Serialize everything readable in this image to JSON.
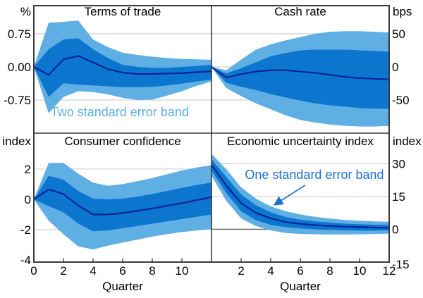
{
  "figure": {
    "x_axis_label": "Quarter",
    "x_max": 12
  },
  "colors": {
    "band_two_se": "#5FAEE4",
    "band_one_se": "#0C76CF",
    "center_line": "#00239E",
    "annotation_blue": "#1B70D4",
    "gridline": "#CCCCCC",
    "zero_line": "#606060",
    "border": "#3A3A3A",
    "text": "#000000",
    "background": "#FFFFFF"
  },
  "chart_data": [
    {
      "type": "area",
      "key": "terms-of-trade",
      "grid": "tl",
      "title": "Terms of trade",
      "unit": "%",
      "side": "left",
      "ylim": [
        -1.5,
        1.387
      ],
      "yticks": [
        {
          "v": 0.75,
          "label": "0.75"
        },
        {
          "v": 0.0,
          "label": "0.00"
        },
        {
          "v": -0.75,
          "label": "-0.75"
        }
      ],
      "x": [
        0,
        1,
        2,
        3,
        4,
        5,
        6,
        7,
        8,
        9,
        10,
        11,
        12
      ],
      "series": {
        "center": [
          0,
          -0.18,
          0.17,
          0.25,
          0.1,
          -0.05,
          -0.13,
          -0.16,
          -0.16,
          -0.15,
          -0.14,
          -0.12,
          -0.1
        ],
        "se1_upper": [
          0,
          0.4,
          0.62,
          0.65,
          0.4,
          0.2,
          0.05,
          0.0,
          -0.02,
          -0.02,
          0.0,
          0.02,
          0.05
        ],
        "se1_lower": [
          0,
          -0.68,
          -0.37,
          -0.4,
          -0.42,
          -0.44,
          -0.46,
          -0.46,
          -0.45,
          -0.42,
          -0.38,
          -0.33,
          -0.29
        ],
        "se2_upper": [
          0,
          1.0,
          1.02,
          1.05,
          0.62,
          0.45,
          0.32,
          0.27,
          0.23,
          0.2,
          0.18,
          0.17,
          0.16
        ],
        "se2_lower": [
          0,
          -1.05,
          -0.68,
          -0.55,
          -0.57,
          -0.62,
          -0.7,
          -0.75,
          -0.74,
          -0.65,
          -0.55,
          -0.43,
          -0.33
        ]
      },
      "annotation": {
        "text": "Two standard error band",
        "x": 5.8,
        "y": -1.12,
        "color_key": "band_two_se"
      }
    },
    {
      "type": "area",
      "key": "cash-rate",
      "grid": "tr",
      "title": "Cash rate",
      "unit": "bps",
      "side": "right",
      "ylim": [
        -100,
        92.5
      ],
      "yticks": [
        {
          "v": 50,
          "label": "50"
        },
        {
          "v": 0,
          "label": "0"
        },
        {
          "v": -50,
          "label": "-50"
        }
      ],
      "x": [
        0,
        1,
        2,
        3,
        4,
        5,
        6,
        7,
        8,
        9,
        10,
        11,
        12
      ],
      "series": {
        "center": [
          0,
          -16,
          -11,
          -7,
          -5,
          -5,
          -7,
          -9,
          -12,
          -15,
          -17,
          -18,
          -19
        ],
        "se1_upper": [
          0,
          -10,
          -2,
          7,
          16,
          21,
          25,
          26,
          26,
          26,
          25,
          24,
          23
        ],
        "se1_lower": [
          0,
          -24,
          -30,
          -35,
          -41,
          -46,
          -51,
          -55,
          -58,
          -60,
          -62,
          -63,
          -63
        ],
        "se2_upper": [
          0,
          -5,
          11,
          26,
          34,
          40,
          45,
          50,
          53,
          54,
          54,
          53,
          52
        ],
        "se2_lower": [
          0,
          -32,
          -44,
          -55,
          -64,
          -73,
          -80,
          -84,
          -87,
          -89,
          -90,
          -90,
          -89
        ]
      }
    },
    {
      "type": "area",
      "key": "consumer-confidence",
      "grid": "bl",
      "title": "Consumer confidence",
      "unit": "index",
      "side": "left",
      "ylim": [
        -4.13,
        4.36
      ],
      "yticks": [
        {
          "v": 2,
          "label": "2"
        },
        {
          "v": 0,
          "label": "0"
        },
        {
          "v": -2,
          "label": "-2"
        },
        {
          "v": -4,
          "label": "-4",
          "grid": false
        }
      ],
      "x": [
        0,
        1,
        2,
        3,
        4,
        5,
        6,
        7,
        8,
        9,
        10,
        11,
        12
      ],
      "xticks": [
        0,
        2,
        4,
        6,
        8,
        10
      ],
      "series": {
        "center": [
          0,
          0.65,
          0.35,
          -0.4,
          -1.0,
          -1.0,
          -0.9,
          -0.75,
          -0.6,
          -0.42,
          -0.25,
          -0.05,
          0.15
        ],
        "se1_upper": [
          0,
          1.55,
          1.3,
          0.55,
          0.05,
          0.0,
          0.05,
          0.18,
          0.35,
          0.55,
          0.75,
          0.95,
          1.1
        ],
        "se1_lower": [
          0,
          -0.45,
          -0.85,
          -1.6,
          -2.1,
          -2.05,
          -1.9,
          -1.75,
          -1.6,
          -1.45,
          -1.3,
          -1.15,
          -1.0
        ],
        "se2_upper": [
          0,
          2.4,
          2.4,
          1.7,
          1.1,
          0.9,
          1.0,
          1.2,
          1.4,
          1.65,
          1.9,
          2.1,
          2.25
        ],
        "se2_lower": [
          0,
          -1.4,
          -2.3,
          -3.1,
          -3.3,
          -3.05,
          -2.85,
          -2.65,
          -2.45,
          -2.3,
          -2.15,
          -2.05,
          -1.95
        ]
      }
    },
    {
      "type": "area",
      "key": "economic-uncertainty-index",
      "grid": "br",
      "title": "Economic uncertainty index",
      "unit": "index",
      "side": "right",
      "ylim": [
        -15,
        44
      ],
      "yticks": [
        {
          "v": 30,
          "label": "30"
        },
        {
          "v": 15,
          "label": "15"
        },
        {
          "v": 0,
          "label": "0",
          "strong": true
        },
        {
          "v": -15,
          "label": "-15",
          "grid": false,
          "dy": 9
        }
      ],
      "x": [
        0,
        1,
        2,
        3,
        4,
        5,
        6,
        7,
        8,
        9,
        10,
        11,
        12
      ],
      "xticks": [
        2,
        4,
        6,
        8,
        10,
        12
      ],
      "series": {
        "center": [
          29.5,
          20,
          12,
          7.5,
          5,
          3.3,
          2.5,
          1.9,
          1.5,
          1.2,
          1.0,
          0.8,
          0.7
        ],
        "se1_upper": [
          32,
          24,
          15.9,
          11,
          7.8,
          5.6,
          4.4,
          3.6,
          3.0,
          2.6,
          2.3,
          2.1,
          2.0
        ],
        "se1_lower": [
          27,
          16.5,
          8.3,
          4.2,
          2.0,
          1.0,
          0.4,
          0.0,
          -0.3,
          -0.5,
          -0.6,
          -0.6,
          -0.5
        ],
        "se2_upper": [
          34.5,
          27.5,
          19.2,
          14,
          10.5,
          8.3,
          6.8,
          5.7,
          4.9,
          4.3,
          3.9,
          3.6,
          3.4
        ],
        "se2_lower": [
          24.5,
          13,
          5.0,
          1.5,
          -0.5,
          -1.7,
          -2.1,
          -2.3,
          -2.4,
          -2.4,
          -2.3,
          -2.2,
          -2.0
        ]
      },
      "annotation": {
        "text": "One standard error band",
        "x": 6.95,
        "y": 23.1,
        "color_key": "annotation_blue",
        "arrow": {
          "x1": 6.33,
          "y1": 20.2,
          "x2": 4.25,
          "y2": 11.2
        }
      }
    }
  ]
}
